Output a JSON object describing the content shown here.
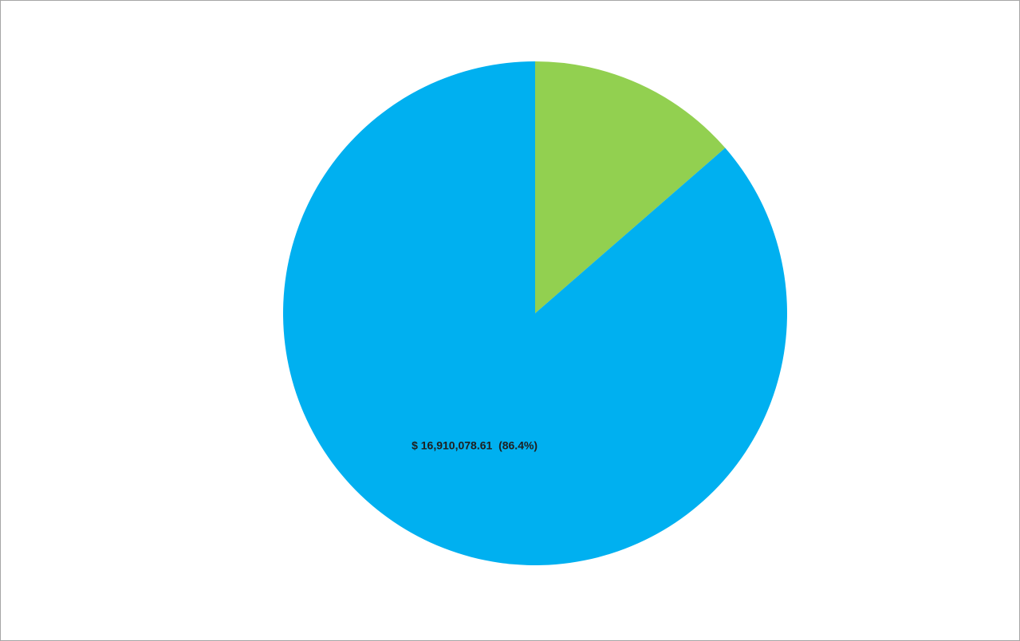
{
  "chart_data": {
    "type": "pie",
    "start": "12 o'clock",
    "direction": "clockwise",
    "slices": [
      {
        "value_fraction": 0.136,
        "color": "#92d050",
        "label": ""
      },
      {
        "value": 16910078.61,
        "value_fraction": 0.864,
        "color": "#00b0f0",
        "label": "$ 16,910,078.61  (86.4%)"
      }
    ]
  }
}
